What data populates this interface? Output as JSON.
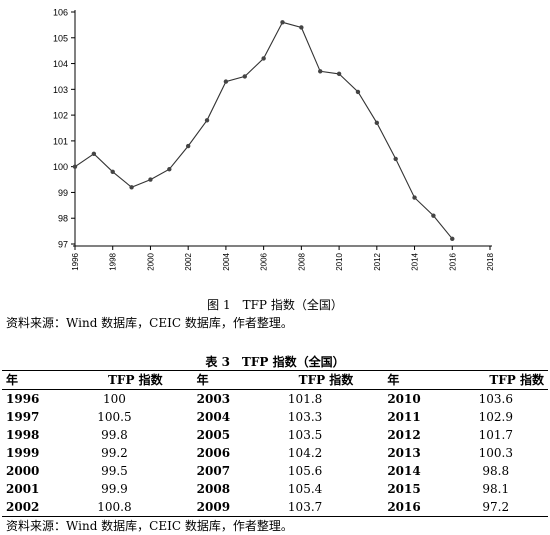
{
  "chart_data": {
    "type": "line",
    "x": [
      1996,
      1997,
      1998,
      1999,
      2000,
      2001,
      2002,
      2003,
      2004,
      2005,
      2006,
      2007,
      2008,
      2009,
      2010,
      2011,
      2012,
      2013,
      2014,
      2015,
      2016
    ],
    "series": [
      {
        "values": [
          100,
          100.5,
          99.8,
          99.2,
          99.5,
          99.9,
          100.8,
          101.8,
          103.3,
          103.5,
          104.2,
          105.6,
          105.4,
          103.7,
          103.6,
          102.9,
          101.7,
          100.3,
          98.8,
          98.1,
          97.2
        ]
      }
    ],
    "xlim": [
      1996,
      2018
    ],
    "ylim": [
      97,
      106
    ],
    "x_ticks": [
      "1996",
      "1998",
      "2000",
      "2002",
      "2004",
      "2006",
      "2008",
      "2010",
      "2012",
      "2014",
      "2016",
      "2018"
    ],
    "y_ticks": [
      "97",
      "98",
      "99",
      "100",
      "101",
      "102",
      "103",
      "104",
      "105",
      "106"
    ],
    "grid": false,
    "line_color": "#333333"
  },
  "figure": {
    "caption": "图 1　TFP 指数（全国）",
    "source": "资料来源：Wind 数据库，CEIC 数据库，作者整理。"
  },
  "table": {
    "caption": "表 3　TFP 指数（全国）",
    "header": {
      "year": "年",
      "value": "TFP 指数"
    },
    "rows": [
      [
        {
          "y": "1996",
          "v": "100"
        },
        {
          "y": "2003",
          "v": "101.8"
        },
        {
          "y": "2010",
          "v": "103.6"
        }
      ],
      [
        {
          "y": "1997",
          "v": "100.5"
        },
        {
          "y": "2004",
          "v": "103.3"
        },
        {
          "y": "2011",
          "v": "102.9"
        }
      ],
      [
        {
          "y": "1998",
          "v": "99.8"
        },
        {
          "y": "2005",
          "v": "103.5"
        },
        {
          "y": "2012",
          "v": "101.7"
        }
      ],
      [
        {
          "y": "1999",
          "v": "99.2"
        },
        {
          "y": "2006",
          "v": "104.2"
        },
        {
          "y": "2013",
          "v": "100.3"
        }
      ],
      [
        {
          "y": "2000",
          "v": "99.5"
        },
        {
          "y": "2007",
          "v": "105.6"
        },
        {
          "y": "2014",
          "v": "98.8"
        }
      ],
      [
        {
          "y": "2001",
          "v": "99.9"
        },
        {
          "y": "2008",
          "v": "105.4"
        },
        {
          "y": "2015",
          "v": "98.1"
        }
      ],
      [
        {
          "y": "2002",
          "v": "100.8"
        },
        {
          "y": "2009",
          "v": "103.7"
        },
        {
          "y": "2016",
          "v": "97.2"
        }
      ]
    ],
    "source": "资料来源：Wind 数据库，CEIC 数据库，作者整理。"
  }
}
